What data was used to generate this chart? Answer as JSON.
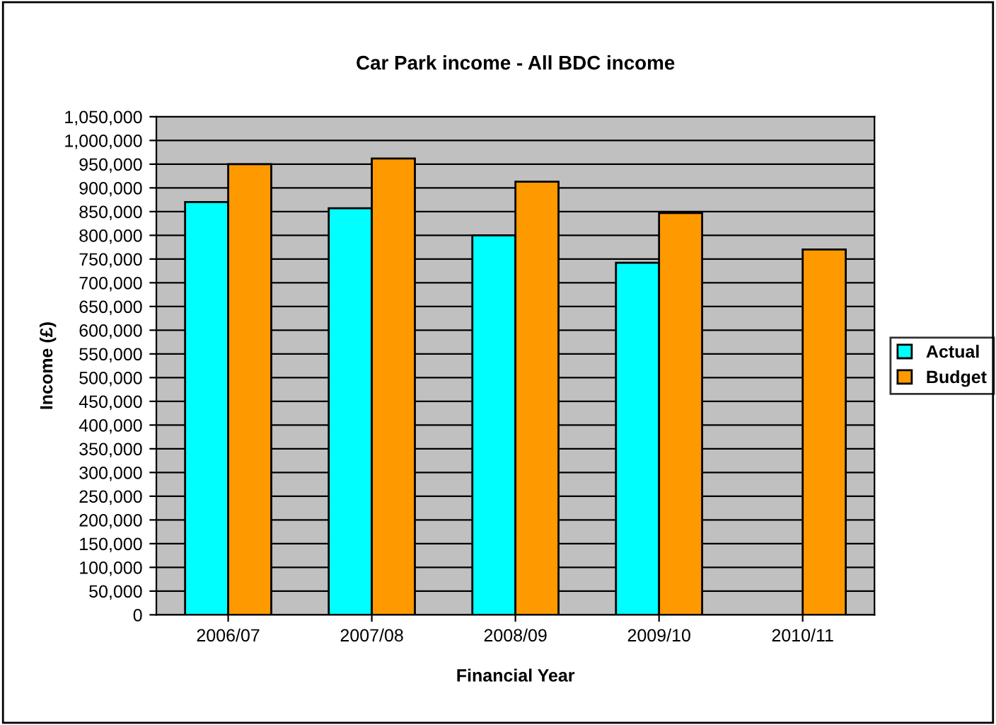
{
  "chart_data": {
    "type": "bar",
    "title": "Car Park income - All BDC income",
    "xlabel": "Financial Year",
    "ylabel": "Income (£)",
    "categories": [
      "2006/07",
      "2007/08",
      "2008/09",
      "2009/10",
      "2010/11"
    ],
    "series": [
      {
        "name": "Actual",
        "color": "#00ffff",
        "values": [
          870000,
          857000,
          800000,
          742000,
          null
        ]
      },
      {
        "name": "Budget",
        "color": "#ff9900",
        "values": [
          950000,
          962000,
          913000,
          847000,
          770000
        ]
      }
    ],
    "ylim": [
      0,
      1050000
    ],
    "yticks": [
      0,
      {
        "value": 50000,
        "label": "50,000"
      },
      {
        "value": 100000,
        "label": "100,000"
      },
      {
        "value": 150000,
        "label": "150,000"
      },
      {
        "value": 200000,
        "label": "200,000"
      },
      {
        "value": 250000,
        "label": "250,000"
      },
      {
        "value": 300000,
        "label": "300,000"
      },
      {
        "value": 350000,
        "label": "350,000"
      },
      {
        "value": 400000,
        "label": "400,000"
      },
      {
        "value": 450000,
        "label": "450,000"
      },
      {
        "value": 500000,
        "label": "500,000"
      },
      {
        "value": 550000,
        "label": "550,000"
      },
      {
        "value": 600000,
        "label": "600,000"
      },
      {
        "value": 650000,
        "label": "650,000"
      },
      {
        "value": 700000,
        "label": "700,000"
      },
      {
        "value": 750000,
        "label": "750,000"
      },
      {
        "value": 800000,
        "label": "800,000"
      },
      {
        "value": 850000,
        "label": "850,000"
      },
      {
        "value": 900000,
        "label": "900,000"
      },
      {
        "value": 950000,
        "label": "950,000"
      },
      {
        "value": 1000000,
        "label": "1,000,000"
      },
      {
        "value": 1050000,
        "label": "1,050,000"
      }
    ],
    "grid": "y",
    "legend": "right"
  }
}
